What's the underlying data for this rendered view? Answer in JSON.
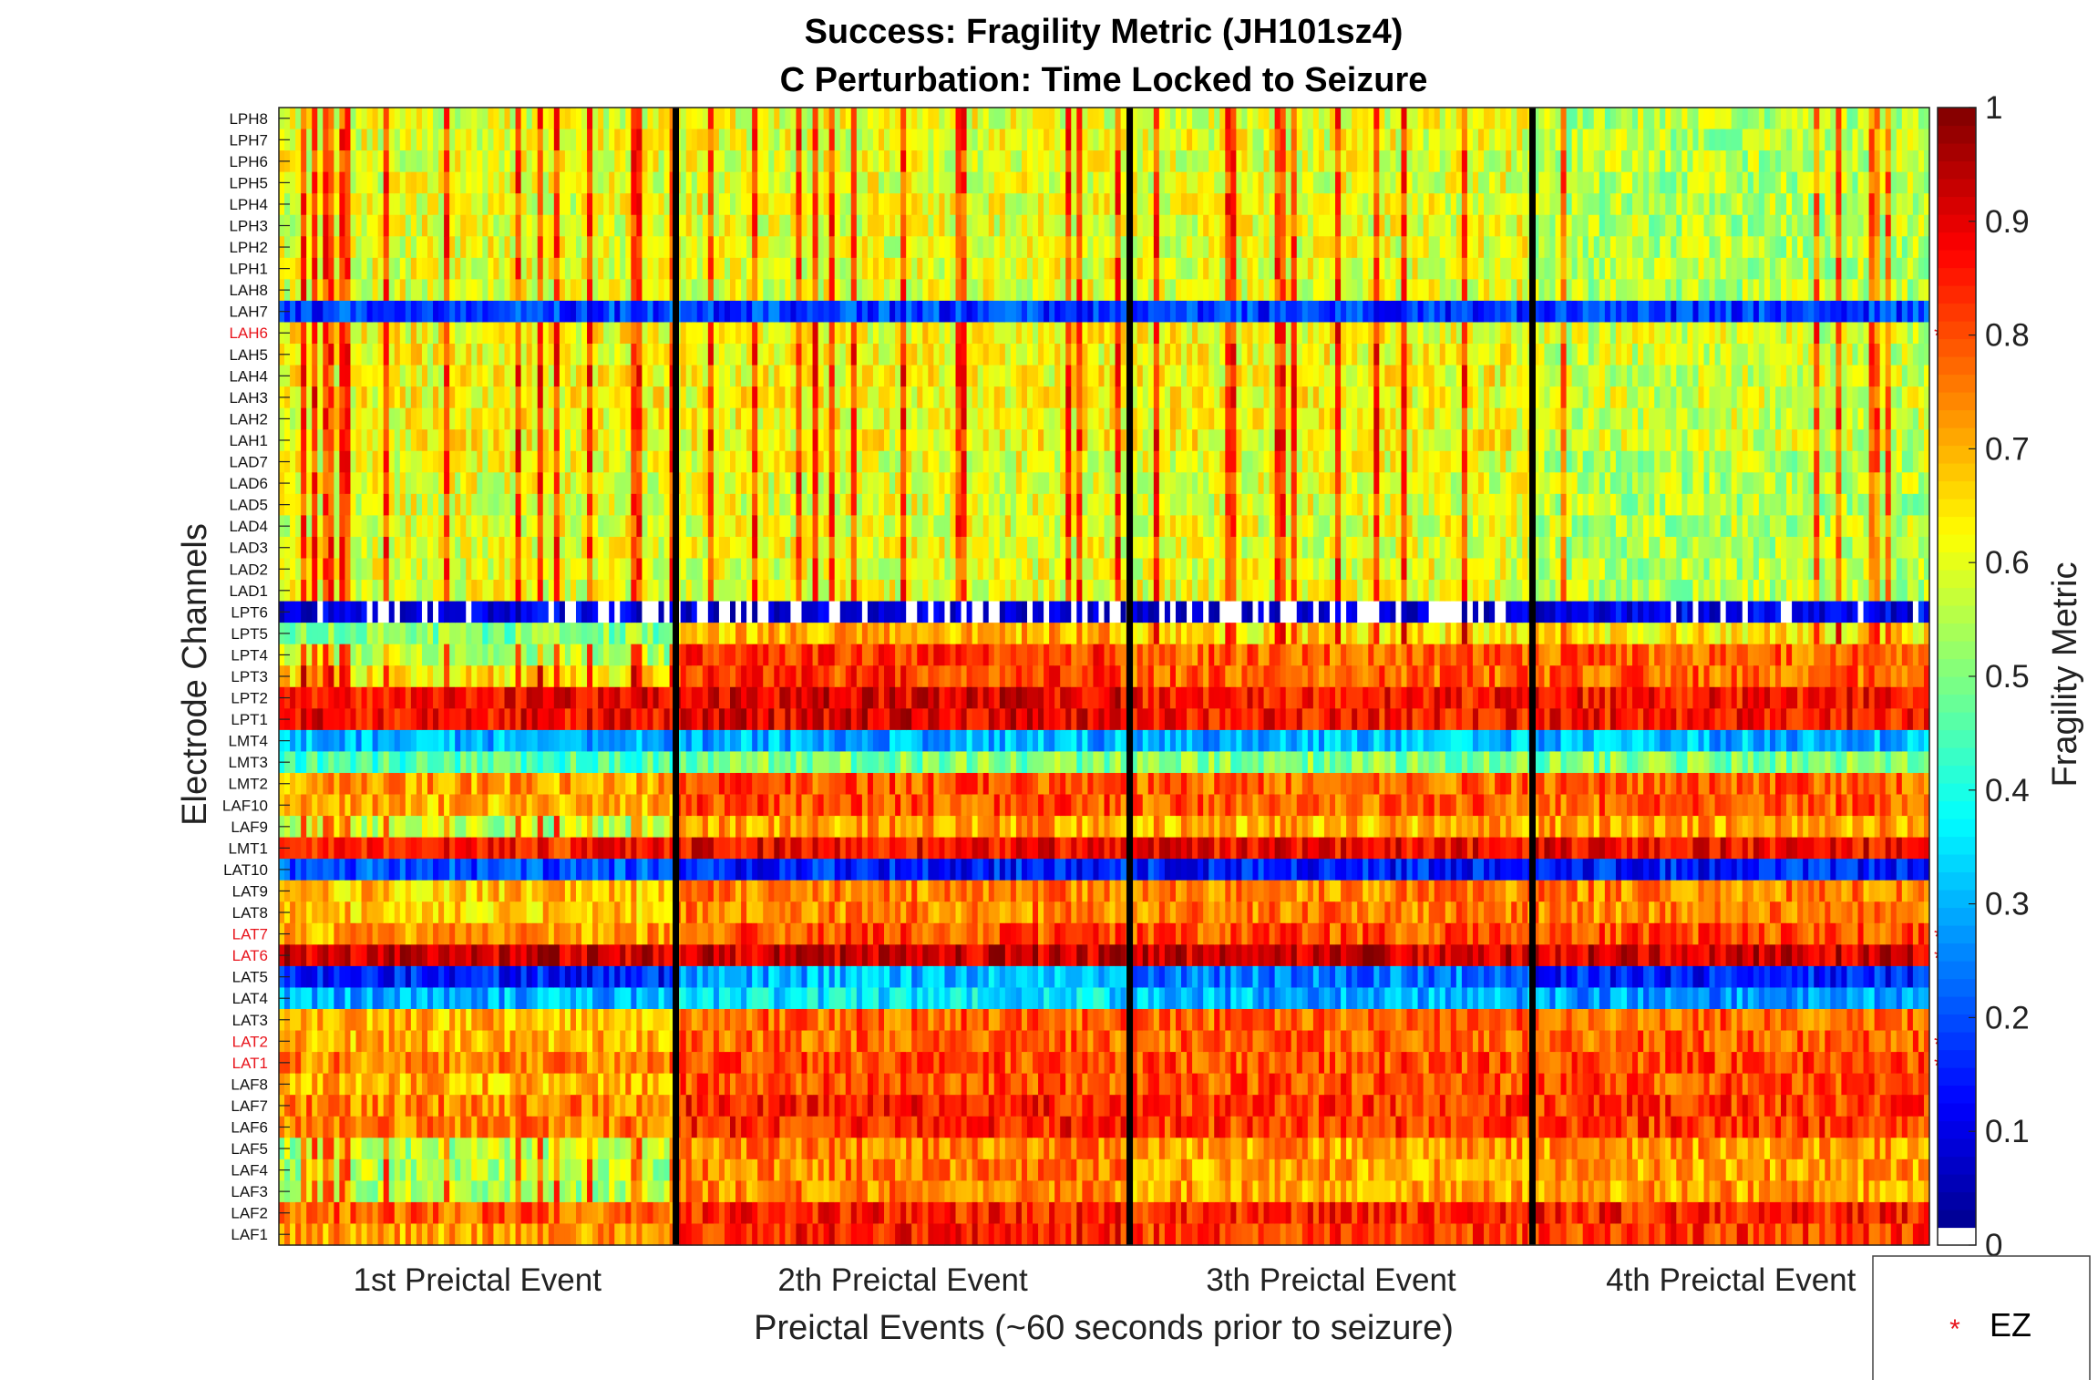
{
  "chart_data": {
    "type": "heatmap",
    "title": "Success: Fragility Metric (JH101sz4)",
    "subtitle": "C Perturbation:  Time Locked to Seizure",
    "xlabel": "Preictal Events (~60 seconds prior to seizure)",
    "ylabel": "Electrode Channels",
    "x_categories": [
      "1st Preictal Event",
      "2th Preictal Event",
      "3th Preictal Event",
      "4th Preictal Event"
    ],
    "y_channels": [
      "LPH8",
      "LPH7",
      "LPH6",
      "LPH5",
      "LPH4",
      "LPH3",
      "LPH2",
      "LPH1",
      "LAH8",
      "LAH7",
      "LAH6",
      "LAH5",
      "LAH4",
      "LAH3",
      "LAH2",
      "LAH1",
      "LAD7",
      "LAD6",
      "LAD5",
      "LAD4",
      "LAD3",
      "LAD2",
      "LAD1",
      "LPT6",
      "LPT5",
      "LPT4",
      "LPT3",
      "LPT2",
      "LPT1",
      "LMT4",
      "LMT3",
      "LMT2",
      "LAF10",
      "LAF9",
      "LMT1",
      "LAT10",
      "LAT9",
      "LAT8",
      "LAT7",
      "LAT6",
      "LAT5",
      "LAT4",
      "LAT3",
      "LAT2",
      "LAT1",
      "LAF8",
      "LAF7",
      "LAF6",
      "LAF5",
      "LAF4",
      "LAF3",
      "LAF2",
      "LAF1"
    ],
    "ez_channels": [
      "LAH6",
      "LAT7",
      "LAT6",
      "LAT2",
      "LAT1"
    ],
    "ez_color": "#e8141c",
    "approx_mean_fragility_per_event": {
      "LPH8": [
        0.6,
        0.6,
        0.6,
        0.55
      ],
      "LPH7": [
        0.6,
        0.6,
        0.6,
        0.55
      ],
      "LPH6": [
        0.6,
        0.6,
        0.6,
        0.55
      ],
      "LPH5": [
        0.6,
        0.6,
        0.6,
        0.55
      ],
      "LPH4": [
        0.6,
        0.6,
        0.6,
        0.55
      ],
      "LPH3": [
        0.6,
        0.6,
        0.6,
        0.55
      ],
      "LPH2": [
        0.6,
        0.6,
        0.6,
        0.55
      ],
      "LPH1": [
        0.6,
        0.6,
        0.6,
        0.55
      ],
      "LAH8": [
        0.6,
        0.6,
        0.6,
        0.55
      ],
      "LAH7": [
        0.18,
        0.18,
        0.18,
        0.18
      ],
      "LAH6": [
        0.62,
        0.62,
        0.62,
        0.58
      ],
      "LAH5": [
        0.62,
        0.62,
        0.62,
        0.58
      ],
      "LAH4": [
        0.62,
        0.62,
        0.62,
        0.58
      ],
      "LAH3": [
        0.62,
        0.62,
        0.62,
        0.58
      ],
      "LAH2": [
        0.62,
        0.62,
        0.62,
        0.58
      ],
      "LAH1": [
        0.62,
        0.62,
        0.62,
        0.58
      ],
      "LAD7": [
        0.6,
        0.6,
        0.6,
        0.55
      ],
      "LAD6": [
        0.6,
        0.6,
        0.6,
        0.55
      ],
      "LAD5": [
        0.6,
        0.6,
        0.6,
        0.55
      ],
      "LAD4": [
        0.6,
        0.6,
        0.6,
        0.55
      ],
      "LAD3": [
        0.6,
        0.6,
        0.6,
        0.55
      ],
      "LAD2": [
        0.6,
        0.6,
        0.6,
        0.55
      ],
      "LAD1": [
        0.6,
        0.6,
        0.6,
        0.55
      ],
      "LPT6": [
        0.08,
        0.05,
        0.05,
        0.1
      ],
      "LPT5": [
        0.5,
        0.7,
        0.65,
        0.65
      ],
      "LPT4": [
        0.55,
        0.82,
        0.78,
        0.78
      ],
      "LPT3": [
        0.65,
        0.82,
        0.78,
        0.78
      ],
      "LPT2": [
        0.88,
        0.9,
        0.86,
        0.86
      ],
      "LPT1": [
        0.88,
        0.9,
        0.86,
        0.86
      ],
      "LMT4": [
        0.3,
        0.3,
        0.3,
        0.3
      ],
      "LMT3": [
        0.45,
        0.5,
        0.5,
        0.5
      ],
      "LMT2": [
        0.72,
        0.8,
        0.78,
        0.78
      ],
      "LAF10": [
        0.7,
        0.8,
        0.78,
        0.78
      ],
      "LAF9": [
        0.55,
        0.72,
        0.7,
        0.72
      ],
      "LMT1": [
        0.85,
        0.88,
        0.88,
        0.88
      ],
      "LAT10": [
        0.2,
        0.15,
        0.15,
        0.15
      ],
      "LAT9": [
        0.68,
        0.75,
        0.75,
        0.75
      ],
      "LAT8": [
        0.68,
        0.75,
        0.75,
        0.75
      ],
      "LAT7": [
        0.72,
        0.8,
        0.8,
        0.8
      ],
      "LAT6": [
        0.92,
        0.92,
        0.92,
        0.92
      ],
      "LAT5": [
        0.15,
        0.3,
        0.25,
        0.15
      ],
      "LAT4": [
        0.3,
        0.35,
        0.3,
        0.28
      ],
      "LAT3": [
        0.7,
        0.78,
        0.78,
        0.78
      ],
      "LAT2": [
        0.7,
        0.78,
        0.78,
        0.78
      ],
      "LAT1": [
        0.75,
        0.8,
        0.8,
        0.8
      ],
      "LAF8": [
        0.7,
        0.8,
        0.8,
        0.8
      ],
      "LAF7": [
        0.75,
        0.85,
        0.82,
        0.82
      ],
      "LAF6": [
        0.75,
        0.85,
        0.82,
        0.82
      ],
      "LAF5": [
        0.55,
        0.75,
        0.72,
        0.72
      ],
      "LAF4": [
        0.55,
        0.75,
        0.72,
        0.72
      ],
      "LAF3": [
        0.55,
        0.75,
        0.72,
        0.72
      ],
      "LAF2": [
        0.78,
        0.85,
        0.85,
        0.85
      ],
      "LAF1": [
        0.72,
        0.85,
        0.82,
        0.82
      ]
    },
    "colorbar": {
      "label": "Fragility Metric",
      "ticks": [
        "0",
        "0.1",
        "0.2",
        "0.3",
        "0.4",
        "0.5",
        "0.6",
        "0.7",
        "0.8",
        "0.9",
        "1"
      ],
      "range": [
        0,
        1
      ],
      "colormap": "jet"
    },
    "legend": {
      "marker": "*",
      "label": "EZ",
      "position": "bottom-right"
    },
    "grid": false
  }
}
